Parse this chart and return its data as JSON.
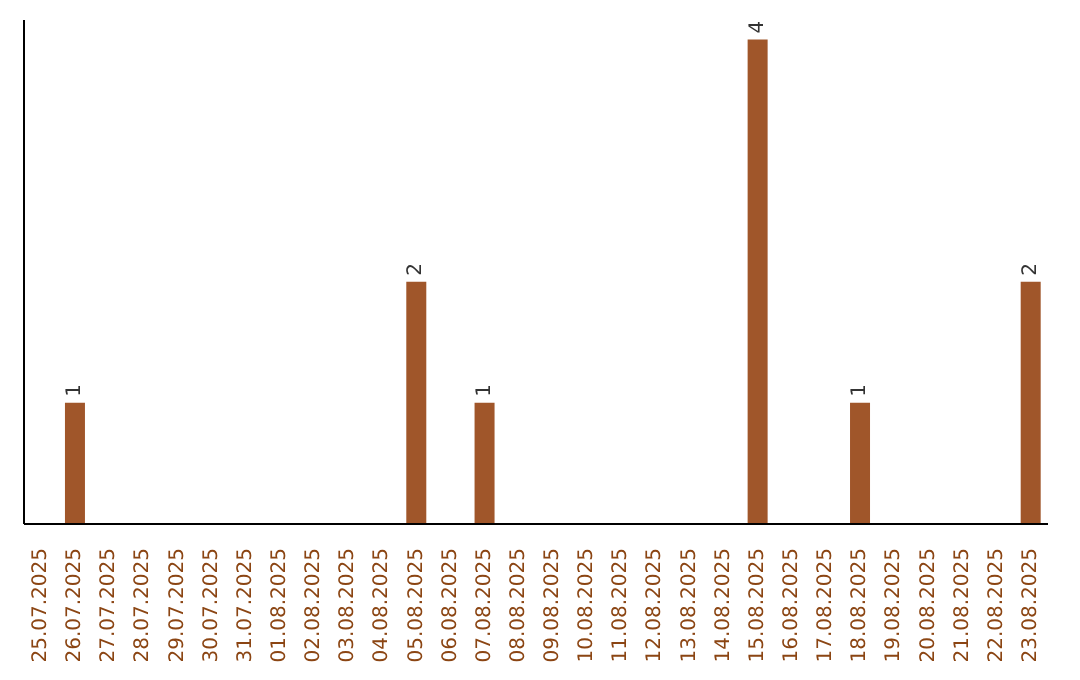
{
  "chart_data": {
    "type": "bar",
    "categories": [
      "25.07.2025",
      "26.07.2025",
      "27.07.2025",
      "28.07.2025",
      "29.07.2025",
      "30.07.2025",
      "31.07.2025",
      "01.08.2025",
      "02.08.2025",
      "03.08.2025",
      "04.08.2025",
      "05.08.2025",
      "06.08.2025",
      "07.08.2025",
      "08.08.2025",
      "09.08.2025",
      "10.08.2025",
      "11.08.2025",
      "12.08.2025",
      "13.08.2025",
      "14.08.2025",
      "15.08.2025",
      "16.08.2025",
      "17.08.2025",
      "18.08.2025",
      "19.08.2025",
      "20.08.2025",
      "21.08.2025",
      "22.08.2025",
      "23.08.2025"
    ],
    "values": [
      0,
      1,
      0,
      0,
      0,
      0,
      0,
      0,
      0,
      0,
      0,
      2,
      0,
      1,
      0,
      0,
      0,
      0,
      0,
      0,
      0,
      4,
      0,
      0,
      1,
      0,
      0,
      0,
      0,
      2
    ],
    "value_labels": [
      null,
      "1",
      null,
      null,
      null,
      null,
      null,
      null,
      null,
      null,
      null,
      "2",
      null,
      "1",
      null,
      null,
      null,
      null,
      null,
      null,
      null,
      "4",
      null,
      null,
      "1",
      null,
      null,
      null,
      null,
      "2"
    ],
    "color": "#a0562a"
  }
}
